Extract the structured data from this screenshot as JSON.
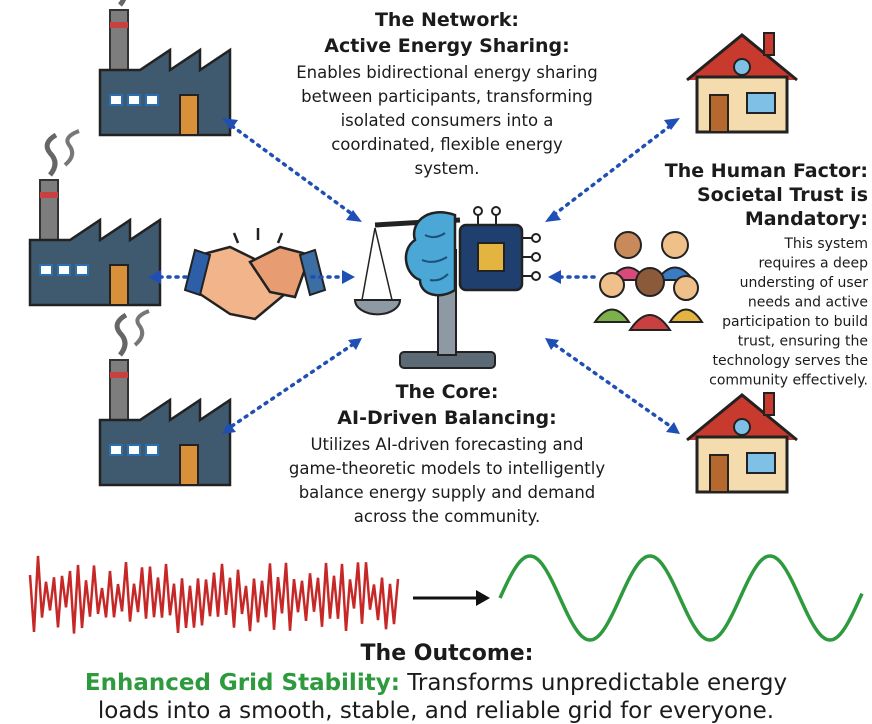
{
  "network": {
    "title": "The Network:",
    "subtitle": "Active Energy Sharing:",
    "body_lines": [
      "Enables bidirectional energy sharing",
      "between participants, transforming",
      "isolated consumers into a",
      "coordinated, flexible energy",
      "system."
    ]
  },
  "human_factor": {
    "title_lines": [
      "The Human Factor:",
      "Societal Trust is",
      "Mandatory:"
    ],
    "body_lines": [
      "This system",
      "requires a deep",
      "understing of user",
      "needs and active",
      "participation to build",
      "trust, ensuring the",
      "technology serves the",
      "community effectively."
    ]
  },
  "core": {
    "title": "The Core:",
    "subtitle": "AI-Driven Balancing:",
    "body_lines": [
      "Utilizes AI-driven forecasting and",
      "game-theoretic models to intelligently",
      "balance energy supply and demand",
      "across the community."
    ]
  },
  "outcome": {
    "title": "The Outcome:",
    "highlight": "Enhanced Grid Stability:",
    "lines": [
      "Transforms unpredictable energy",
      "loads into a smooth, stable, and reliable grid for everyone."
    ]
  }
}
